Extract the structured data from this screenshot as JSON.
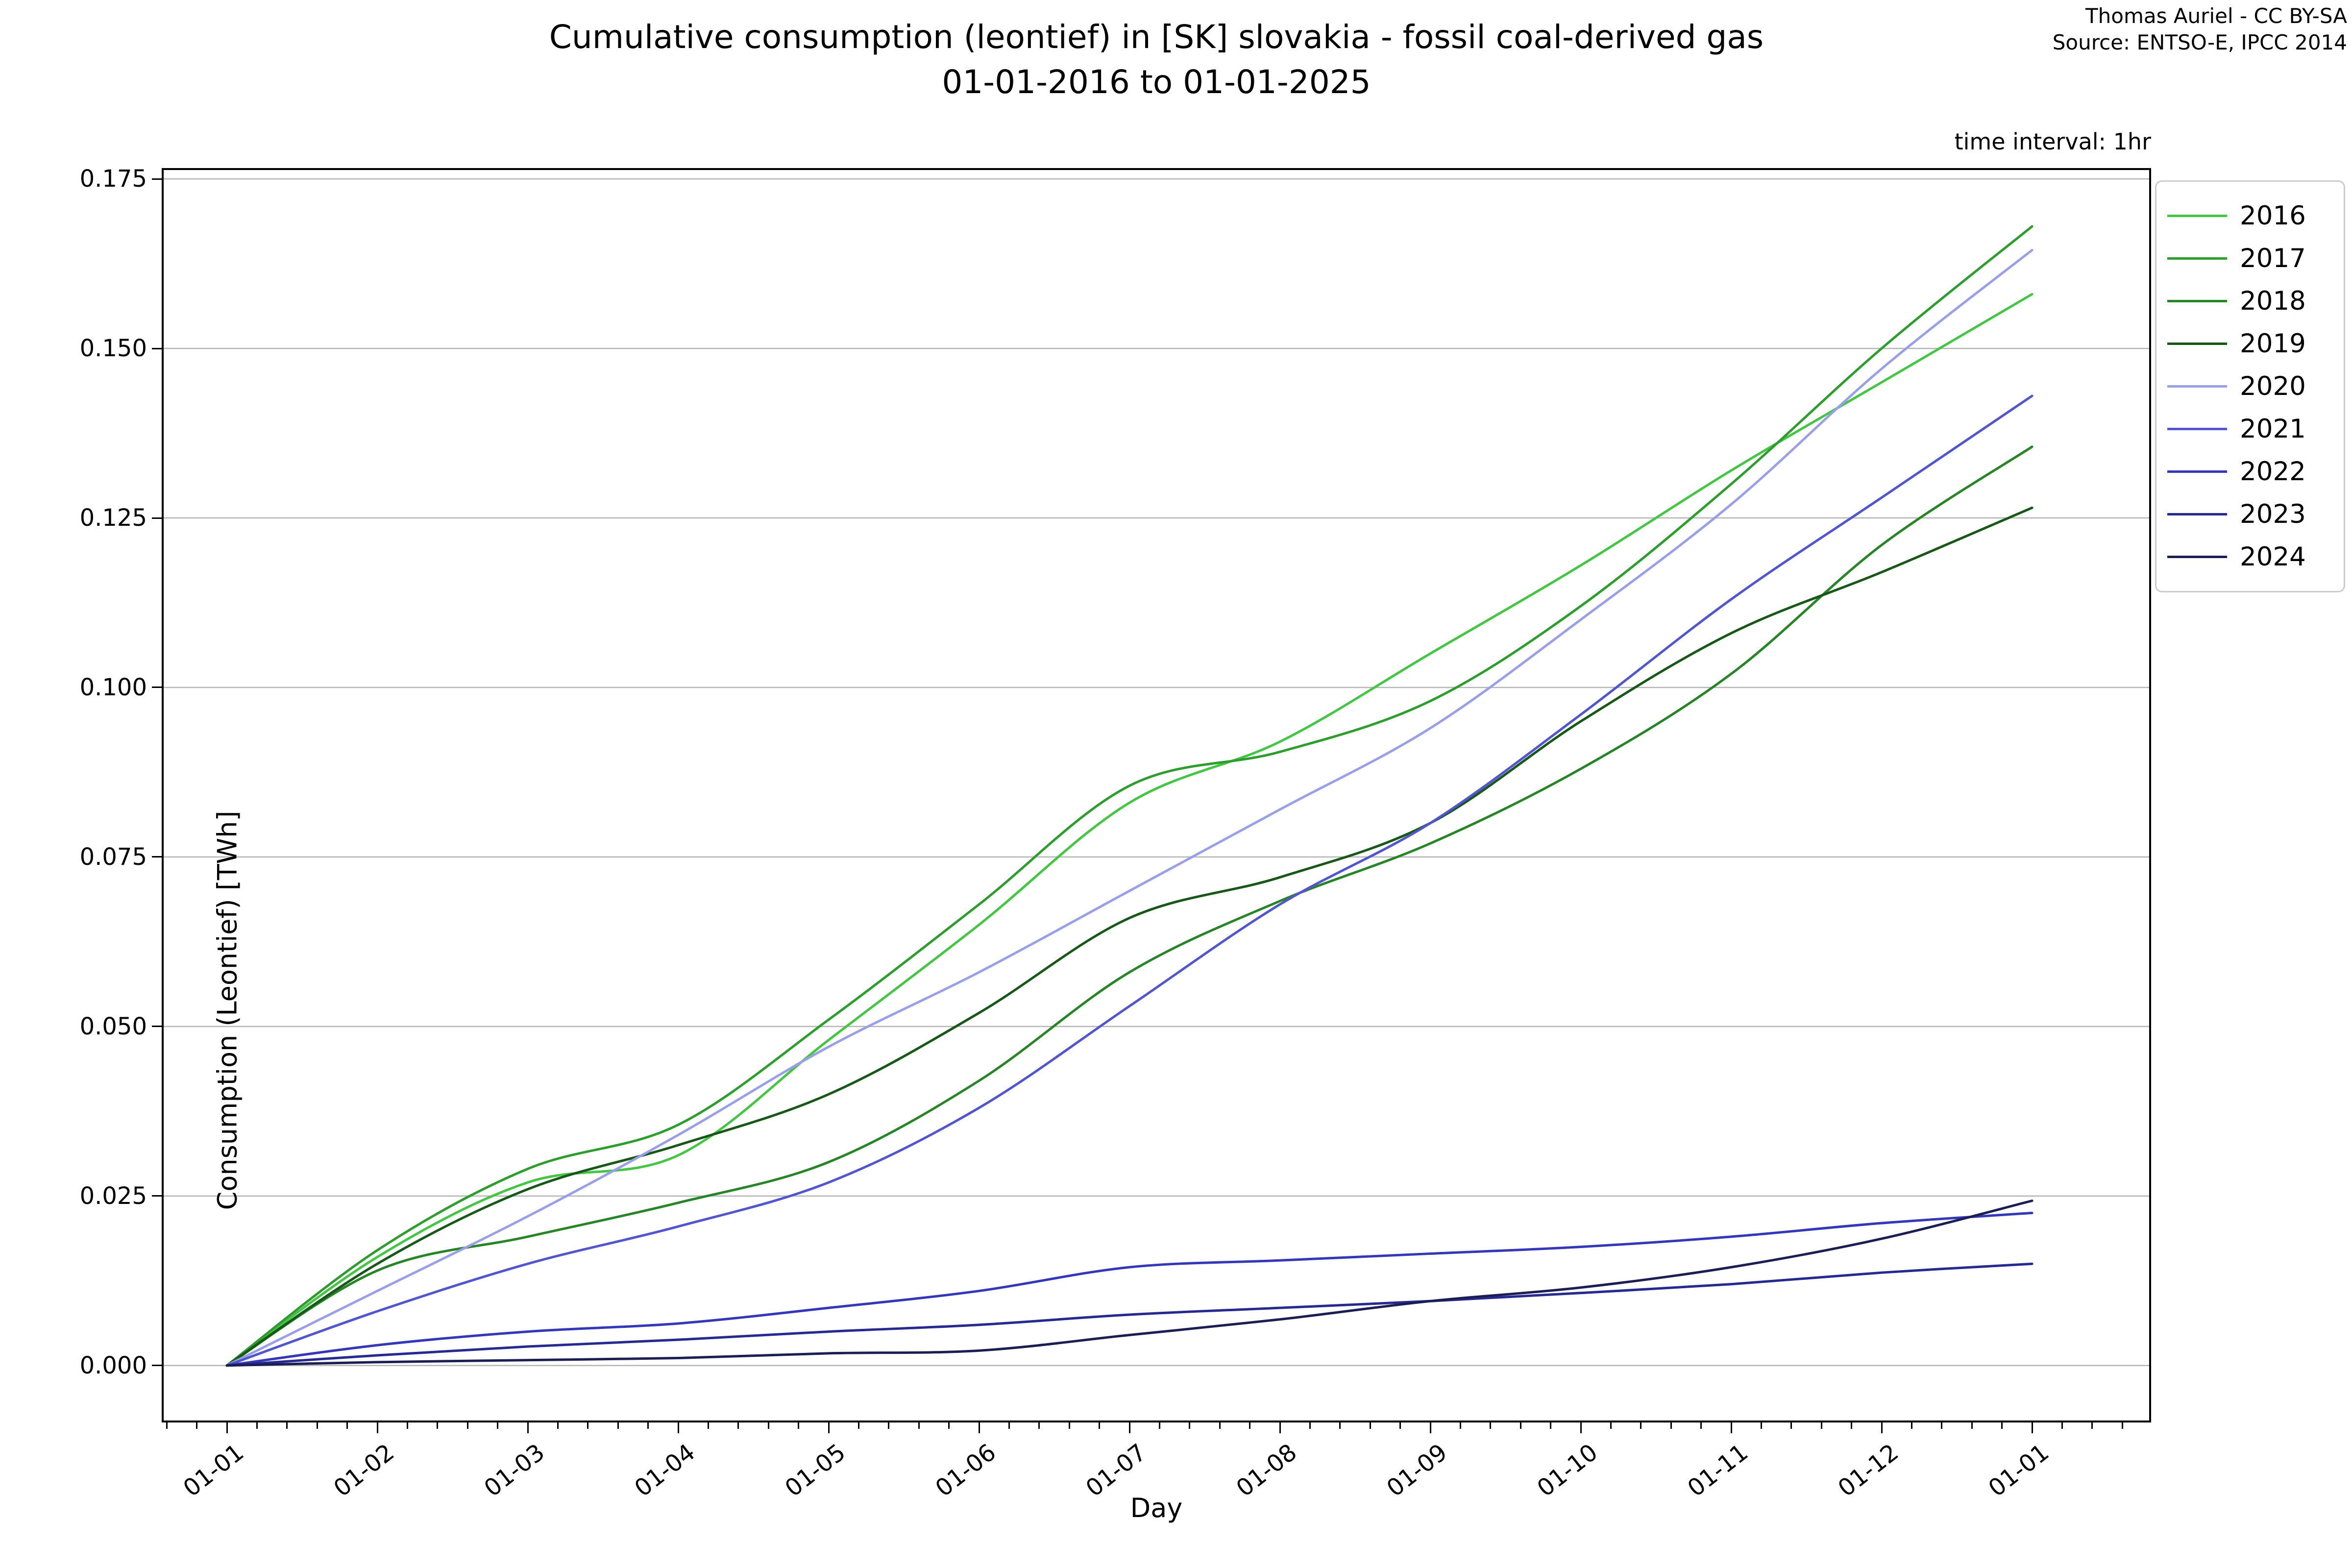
{
  "window": {
    "title": "Cumulative consumption plot"
  },
  "attribution": {
    "line1": "Thomas Auriel - CC BY-SA",
    "line2": "Source: ENTSO-E, IPCC 2014"
  },
  "chart_data": {
    "type": "line",
    "title_line1": "Cumulative consumption (leontief) in [SK] slovakia - fossil coal-derived gas",
    "title_line2": "01-01-2016 to 01-01-2025",
    "note": "time interval: 1hr",
    "xlabel": "Day",
    "ylabel": "Consumption (Leontief) [TWh]",
    "grid": true,
    "legend_position": "upper right",
    "grid_color": "#b4b4b4",
    "spine_color": "#000000",
    "x_tick_labels": [
      "01-01",
      "01-02",
      "01-03",
      "01-04",
      "01-05",
      "01-06",
      "01-07",
      "01-08",
      "01-09",
      "01-10",
      "01-11",
      "01-12",
      "01-01"
    ],
    "y_ticks": [
      0.0,
      0.025,
      0.05,
      0.075,
      0.1,
      0.125,
      0.15,
      0.175
    ],
    "ylim": [
      -0.0084,
      0.1766
    ],
    "series": [
      {
        "name": "2016",
        "color": "#44c544",
        "values": [
          0.0,
          0.016,
          0.027,
          0.031,
          0.048,
          0.065,
          0.083,
          0.092,
          0.105,
          0.118,
          0.132,
          0.145,
          0.158
        ]
      },
      {
        "name": "2017",
        "color": "#2d9e2d",
        "values": [
          0.0,
          0.017,
          0.029,
          0.0355,
          0.051,
          0.068,
          0.0855,
          0.0905,
          0.098,
          0.112,
          0.13,
          0.15,
          0.168
        ]
      },
      {
        "name": "2018",
        "color": "#278527",
        "values": [
          0.0,
          0.014,
          0.019,
          0.024,
          0.03,
          0.042,
          0.058,
          0.0685,
          0.077,
          0.088,
          0.102,
          0.121,
          0.1355
        ]
      },
      {
        "name": "2019",
        "color": "#175717",
        "values": [
          0.0,
          0.015,
          0.026,
          0.0325,
          0.04,
          0.052,
          0.066,
          0.072,
          0.08,
          0.095,
          0.108,
          0.117,
          0.1265
        ]
      },
      {
        "name": "2020",
        "color": "#9aa0e8",
        "values": [
          0.0,
          0.011,
          0.022,
          0.034,
          0.047,
          0.058,
          0.07,
          0.082,
          0.094,
          0.11,
          0.127,
          0.147,
          0.1645
        ]
      },
      {
        "name": "2021",
        "color": "#5156cf",
        "values": [
          0.0,
          0.008,
          0.015,
          0.0205,
          0.027,
          0.038,
          0.053,
          0.068,
          0.08,
          0.096,
          0.113,
          0.128,
          0.143
        ]
      },
      {
        "name": "2022",
        "color": "#3437b8",
        "values": [
          0.0,
          0.003,
          0.005,
          0.0062,
          0.0085,
          0.011,
          0.0145,
          0.0155,
          0.0165,
          0.0175,
          0.019,
          0.021,
          0.0225
        ]
      },
      {
        "name": "2023",
        "color": "#262a90",
        "values": [
          0.0,
          0.0015,
          0.0028,
          0.0038,
          0.005,
          0.006,
          0.0075,
          0.0085,
          0.0095,
          0.0107,
          0.012,
          0.0137,
          0.015
        ]
      },
      {
        "name": "2024",
        "color": "#1b1e52",
        "values": [
          0.0,
          0.0005,
          0.0008,
          0.0011,
          0.0018,
          0.0022,
          0.0045,
          0.0068,
          0.0095,
          0.0115,
          0.0145,
          0.0187,
          0.0243
        ]
      }
    ]
  }
}
